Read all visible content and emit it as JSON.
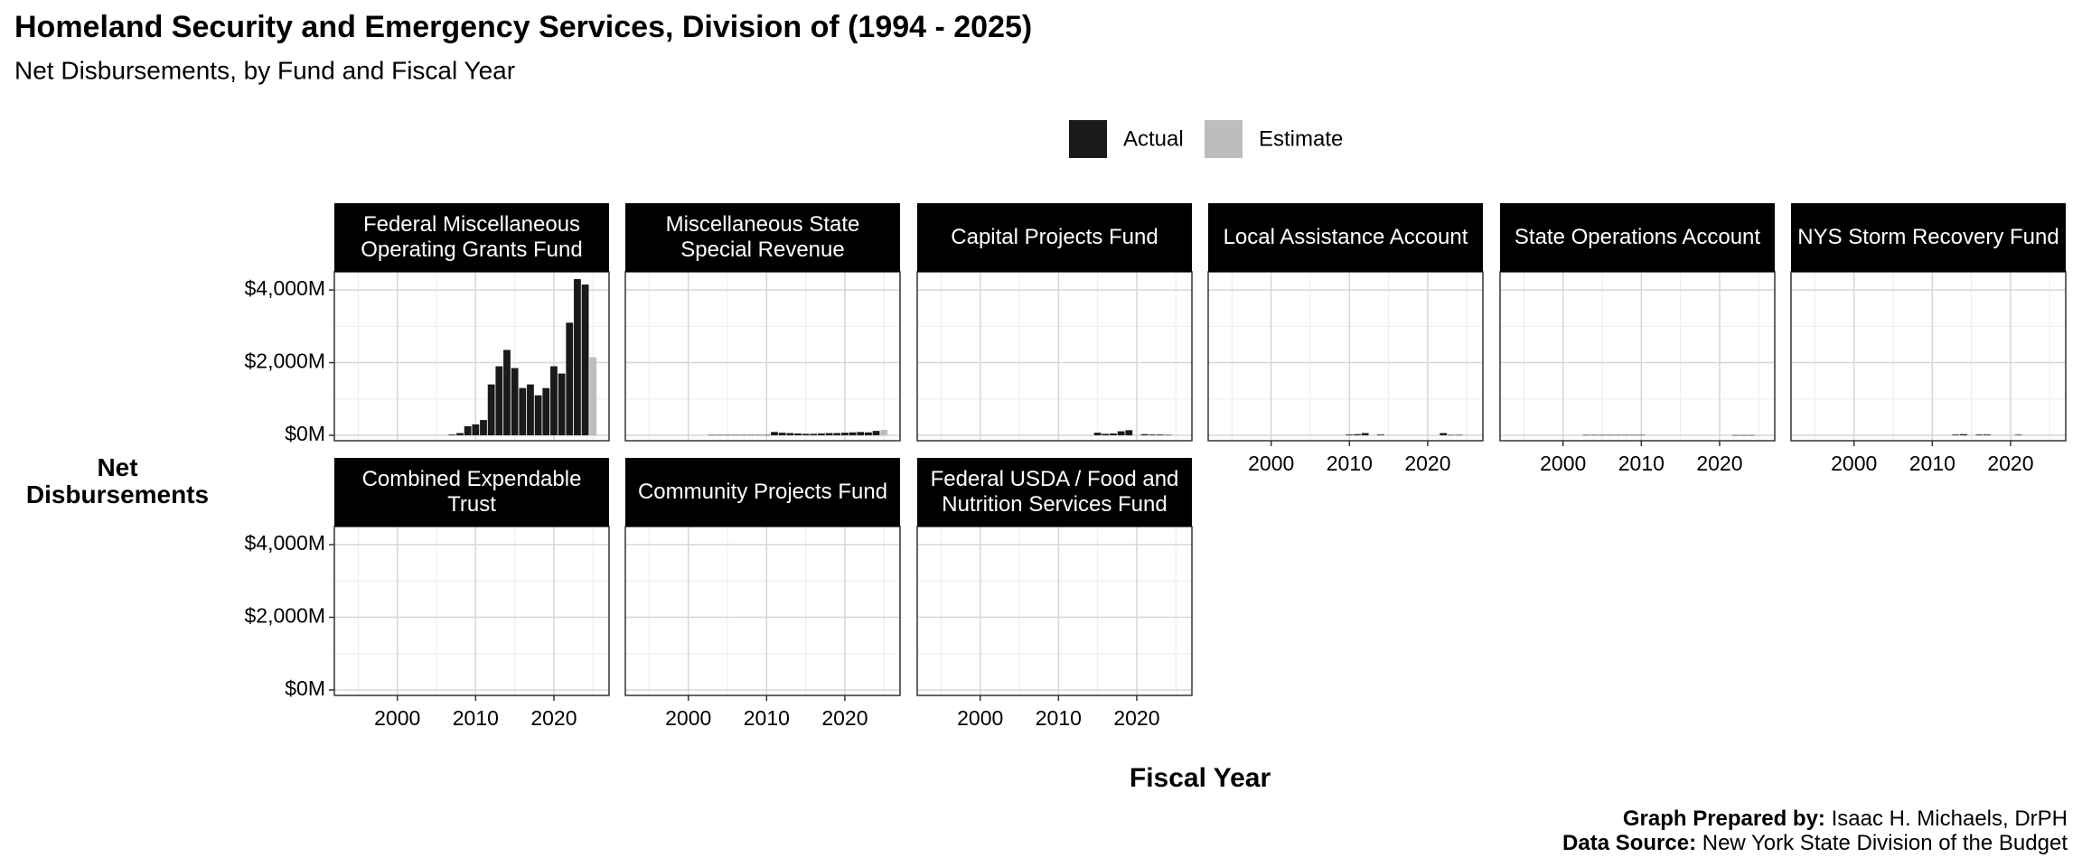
{
  "title": "Homeland Security and Emergency Services, Division of (1994 - 2025)",
  "subtitle": "Net Disbursements, by Fund and Fiscal Year",
  "y_label": "Net Disbursements",
  "x_label": "Fiscal Year",
  "caption": [
    {
      "bold": "Graph Prepared by:",
      "text": "Isaac H. Michaels, DrPH"
    },
    {
      "bold": "Data Source:",
      "text": "New York State Division of the Budget"
    }
  ],
  "chart_data": [
    {
      "type": "bar",
      "title": "Federal Miscellaneous Operating Grants Fund",
      "x": [
        2007,
        2008,
        2009,
        2010,
        2011,
        2012,
        2013,
        2014,
        2015,
        2016,
        2017,
        2018,
        2019,
        2020,
        2021,
        2022,
        2023,
        2024,
        2025
      ],
      "series": [
        {
          "name": "Actual",
          "color": "#1a1a1a",
          "values": [
            20,
            60,
            250,
            300,
            420,
            1400,
            1900,
            2350,
            1850,
            1300,
            1400,
            1100,
            1300,
            1900,
            1700,
            3100,
            4300,
            4150,
            null
          ]
        },
        {
          "name": "Estimate",
          "color": "#bdbdbd",
          "values": [
            null,
            null,
            null,
            null,
            null,
            null,
            null,
            null,
            null,
            null,
            null,
            null,
            null,
            null,
            null,
            null,
            null,
            null,
            2150
          ]
        }
      ],
      "xlim": [
        1991.95,
        2027.05
      ],
      "xticks": [
        2000,
        2010,
        2020
      ],
      "xminorticks": [
        1995,
        2005,
        2015,
        2025
      ],
      "ylim": [
        -150,
        4500
      ],
      "yticks": [
        {
          "value": 0,
          "label": "$0M"
        },
        {
          "value": 2000,
          "label": "$2,000M"
        },
        {
          "value": 4000,
          "label": "$4,000M"
        }
      ],
      "yminorticks": [
        1000,
        3000
      ],
      "grid": true
    },
    {
      "type": "bar",
      "title": "Miscellaneous State Special Revenue",
      "x": [
        2003,
        2004,
        2005,
        2006,
        2007,
        2008,
        2009,
        2010,
        2011,
        2012,
        2013,
        2014,
        2015,
        2016,
        2017,
        2018,
        2019,
        2020,
        2021,
        2022,
        2023,
        2024,
        2025
      ],
      "series": [
        {
          "name": "Actual",
          "color": "#1a1a1a",
          "values": [
            10,
            10,
            10,
            10,
            10,
            10,
            10,
            10,
            90,
            70,
            60,
            50,
            40,
            40,
            50,
            60,
            60,
            70,
            80,
            90,
            80,
            120,
            null
          ]
        },
        {
          "name": "Estimate",
          "color": "#bdbdbd",
          "values": [
            null,
            null,
            null,
            null,
            null,
            null,
            null,
            null,
            null,
            null,
            null,
            null,
            null,
            null,
            null,
            null,
            null,
            null,
            null,
            null,
            null,
            null,
            150
          ]
        }
      ],
      "xlim": [
        1991.95,
        2027.05
      ],
      "xticks": [
        2000,
        2010,
        2020
      ],
      "xminorticks": [
        1995,
        2005,
        2015,
        2025
      ],
      "ylim": [
        -150,
        4500
      ],
      "yticks": [
        {
          "value": 0,
          "label": "$0M"
        },
        {
          "value": 2000,
          "label": "$2,000M"
        },
        {
          "value": 4000,
          "label": "$4,000M"
        }
      ],
      "yminorticks": [
        1000,
        3000
      ],
      "grid": true
    },
    {
      "type": "bar",
      "title": "Capital Projects Fund",
      "x": [
        2015,
        2016,
        2017,
        2018,
        2019,
        2021,
        2022,
        2023,
        2024
      ],
      "series": [
        {
          "name": "Actual",
          "color": "#1a1a1a",
          "values": [
            70,
            40,
            50,
            110,
            140,
            30,
            20,
            20,
            10
          ]
        },
        {
          "name": "Estimate",
          "color": "#bdbdbd",
          "values": [
            null,
            null,
            null,
            null,
            null,
            null,
            null,
            null,
            null
          ]
        }
      ],
      "xlim": [
        1991.95,
        2027.05
      ],
      "xticks": [
        2000,
        2010,
        2020
      ],
      "xminorticks": [
        1995,
        2005,
        2015,
        2025
      ],
      "ylim": [
        -150,
        4500
      ],
      "yticks": [
        {
          "value": 0,
          "label": "$0M"
        },
        {
          "value": 2000,
          "label": "$2,000M"
        },
        {
          "value": 4000,
          "label": "$4,000M"
        }
      ],
      "yminorticks": [
        1000,
        3000
      ],
      "grid": true
    },
    {
      "type": "bar",
      "title": "Local Assistance Account",
      "x": [
        2010,
        2011,
        2012,
        2014,
        2022,
        2023,
        2024
      ],
      "series": [
        {
          "name": "Actual",
          "color": "#1a1a1a",
          "values": [
            20,
            30,
            60,
            20,
            60,
            10,
            10
          ]
        },
        {
          "name": "Estimate",
          "color": "#bdbdbd",
          "values": [
            null,
            null,
            null,
            null,
            null,
            null,
            null
          ]
        }
      ],
      "xlim": [
        1991.95,
        2027.05
      ],
      "xticks": [
        2000,
        2010,
        2020
      ],
      "xminorticks": [
        1995,
        2005,
        2015,
        2025
      ],
      "ylim": [
        -150,
        4500
      ],
      "yticks": [
        {
          "value": 0,
          "label": "$0M"
        },
        {
          "value": 2000,
          "label": "$2,000M"
        },
        {
          "value": 4000,
          "label": "$4,000M"
        }
      ],
      "yminorticks": [
        1000,
        3000
      ],
      "grid": true
    },
    {
      "type": "bar",
      "title": "State Operations Account",
      "x": [
        2003,
        2004,
        2005,
        2006,
        2007,
        2008,
        2009,
        2010,
        2022,
        2023,
        2024
      ],
      "series": [
        {
          "name": "Actual",
          "color": "#1a1a1a",
          "values": [
            10,
            10,
            10,
            10,
            10,
            10,
            10,
            10,
            5,
            5,
            5
          ]
        },
        {
          "name": "Estimate",
          "color": "#bdbdbd",
          "values": [
            null,
            null,
            null,
            null,
            null,
            null,
            null,
            null,
            null,
            null,
            null
          ]
        }
      ],
      "xlim": [
        1991.95,
        2027.05
      ],
      "xticks": [
        2000,
        2010,
        2020
      ],
      "xminorticks": [
        1995,
        2005,
        2015,
        2025
      ],
      "ylim": [
        -150,
        4500
      ],
      "yticks": [
        {
          "value": 0,
          "label": "$0M"
        },
        {
          "value": 2000,
          "label": "$2,000M"
        },
        {
          "value": 4000,
          "label": "$4,000M"
        }
      ],
      "yminorticks": [
        1000,
        3000
      ],
      "grid": true
    },
    {
      "type": "bar",
      "title": "NYS Storm Recovery Fund",
      "x": [
        2013,
        2014,
        2016,
        2017,
        2021
      ],
      "series": [
        {
          "name": "Actual",
          "color": "#1a1a1a",
          "values": [
            20,
            30,
            20,
            20,
            15
          ]
        },
        {
          "name": "Estimate",
          "color": "#bdbdbd",
          "values": [
            null,
            null,
            null,
            null,
            null
          ]
        }
      ],
      "xlim": [
        1991.95,
        2027.05
      ],
      "xticks": [
        2000,
        2010,
        2020
      ],
      "xminorticks": [
        1995,
        2005,
        2015,
        2025
      ],
      "ylim": [
        -150,
        4500
      ],
      "yticks": [
        {
          "value": 0,
          "label": "$0M"
        },
        {
          "value": 2000,
          "label": "$2,000M"
        },
        {
          "value": 4000,
          "label": "$4,000M"
        }
      ],
      "yminorticks": [
        1000,
        3000
      ],
      "grid": true
    },
    {
      "type": "bar",
      "title": "Combined Expendable Trust",
      "x": [],
      "series": [
        {
          "name": "Actual",
          "color": "#1a1a1a",
          "values": []
        },
        {
          "name": "Estimate",
          "color": "#bdbdbd",
          "values": []
        }
      ],
      "xlim": [
        1991.95,
        2027.05
      ],
      "xticks": [
        2000,
        2010,
        2020
      ],
      "xminorticks": [
        1995,
        2005,
        2015,
        2025
      ],
      "ylim": [
        -150,
        4500
      ],
      "yticks": [
        {
          "value": 0,
          "label": "$0M"
        },
        {
          "value": 2000,
          "label": "$2,000M"
        },
        {
          "value": 4000,
          "label": "$4,000M"
        }
      ],
      "yminorticks": [
        1000,
        3000
      ],
      "grid": true
    },
    {
      "type": "bar",
      "title": "Community Projects Fund",
      "x": [],
      "series": [
        {
          "name": "Actual",
          "color": "#1a1a1a",
          "values": []
        },
        {
          "name": "Estimate",
          "color": "#bdbdbd",
          "values": []
        }
      ],
      "xlim": [
        1991.95,
        2027.05
      ],
      "xticks": [
        2000,
        2010,
        2020
      ],
      "xminorticks": [
        1995,
        2005,
        2015,
        2025
      ],
      "ylim": [
        -150,
        4500
      ],
      "yticks": [
        {
          "value": 0,
          "label": "$0M"
        },
        {
          "value": 2000,
          "label": "$2,000M"
        },
        {
          "value": 4000,
          "label": "$4,000M"
        }
      ],
      "yminorticks": [
        1000,
        3000
      ],
      "grid": true
    },
    {
      "type": "bar",
      "title": "Federal USDA / Food and Nutrition Services Fund",
      "x": [],
      "series": [
        {
          "name": "Actual",
          "color": "#1a1a1a",
          "values": []
        },
        {
          "name": "Estimate",
          "color": "#bdbdbd",
          "values": []
        }
      ],
      "xlim": [
        1991.95,
        2027.05
      ],
      "xticks": [
        2000,
        2010,
        2020
      ],
      "xminorticks": [
        1995,
        2005,
        2015,
        2025
      ],
      "ylim": [
        -150,
        4500
      ],
      "yticks": [
        {
          "value": 0,
          "label": "$0M"
        },
        {
          "value": 2000,
          "label": "$2,000M"
        },
        {
          "value": 4000,
          "label": "$4,000M"
        }
      ],
      "yminorticks": [
        1000,
        3000
      ],
      "grid": true
    }
  ]
}
